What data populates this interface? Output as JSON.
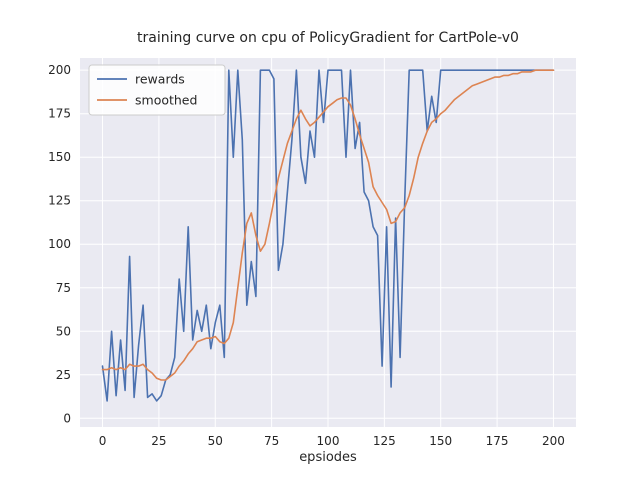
{
  "chart_data": {
    "type": "line",
    "title": "training curve on cpu of PolicyGradient for CartPole-v0",
    "xlabel": "epsiodes",
    "ylabel": "",
    "grid": true,
    "legend_position": "upper left",
    "xlim": [
      -10,
      210
    ],
    "ylim": [
      -5,
      207
    ],
    "xticks": [
      0,
      25,
      50,
      75,
      100,
      125,
      150,
      175,
      200
    ],
    "yticks": [
      0,
      25,
      50,
      75,
      100,
      125,
      150,
      175,
      200
    ],
    "colors": {
      "axes_bg": "#eaeaf2",
      "grid": "#ffffff",
      "text": "#262626",
      "legend_border": "#cccccc",
      "rewards": "#4c72b0",
      "smoothed": "#dd8452"
    },
    "x": [
      0,
      2,
      4,
      6,
      8,
      10,
      12,
      14,
      16,
      18,
      20,
      22,
      24,
      26,
      28,
      30,
      32,
      34,
      36,
      38,
      40,
      42,
      44,
      46,
      48,
      50,
      52,
      54,
      56,
      58,
      60,
      62,
      64,
      66,
      68,
      70,
      72,
      74,
      76,
      78,
      80,
      82,
      84,
      86,
      88,
      90,
      92,
      94,
      96,
      98,
      100,
      102,
      104,
      106,
      108,
      110,
      112,
      114,
      116,
      118,
      120,
      122,
      124,
      126,
      128,
      130,
      132,
      134,
      136,
      138,
      140,
      142,
      144,
      146,
      148,
      150,
      152,
      154,
      156,
      158,
      160,
      162,
      164,
      166,
      168,
      170,
      172,
      174,
      176,
      178,
      180,
      182,
      184,
      186,
      188,
      190,
      192,
      194,
      196,
      198,
      200
    ],
    "series": [
      {
        "name": "rewards",
        "color": "#4c72b0",
        "values": [
          30,
          10,
          50,
          13,
          45,
          16,
          93,
          12,
          42,
          65,
          12,
          14,
          10,
          13,
          22,
          25,
          35,
          80,
          50,
          110,
          45,
          62,
          50,
          65,
          40,
          55,
          65,
          35,
          200,
          150,
          200,
          160,
          65,
          90,
          70,
          200,
          200,
          200,
          195,
          85,
          100,
          130,
          160,
          200,
          150,
          135,
          165,
          150,
          200,
          170,
          200,
          200,
          200,
          200,
          150,
          200,
          155,
          170,
          130,
          125,
          110,
          105,
          30,
          110,
          18,
          115,
          35,
          125,
          200,
          200,
          200,
          200,
          165,
          185,
          170,
          200,
          200,
          200,
          200,
          200,
          200,
          200,
          200,
          200,
          200,
          200,
          200,
          200,
          200,
          200,
          200,
          200,
          200,
          200,
          200,
          200,
          200,
          200,
          200,
          200,
          200
        ]
      },
      {
        "name": "smoothed",
        "color": "#dd8452",
        "values": [
          28,
          28,
          29,
          28,
          29,
          28,
          31,
          30,
          30,
          31,
          28,
          26,
          23,
          22,
          22,
          24,
          26,
          30,
          33,
          37,
          40,
          44,
          45,
          46,
          46,
          47,
          44,
          43,
          46,
          55,
          75,
          95,
          112,
          118,
          105,
          96,
          100,
          112,
          125,
          138,
          148,
          158,
          165,
          172,
          177,
          172,
          168,
          170,
          173,
          176,
          179,
          181,
          183,
          184,
          184,
          180,
          172,
          163,
          155,
          147,
          133,
          128,
          124,
          120,
          112,
          113,
          118,
          121,
          128,
          138,
          150,
          158,
          165,
          170,
          172,
          175,
          177,
          180,
          183,
          185,
          187,
          189,
          191,
          192,
          193,
          194,
          195,
          196,
          196,
          197,
          197,
          198,
          198,
          199,
          199,
          199,
          200,
          200,
          200,
          200,
          200
        ]
      }
    ]
  }
}
